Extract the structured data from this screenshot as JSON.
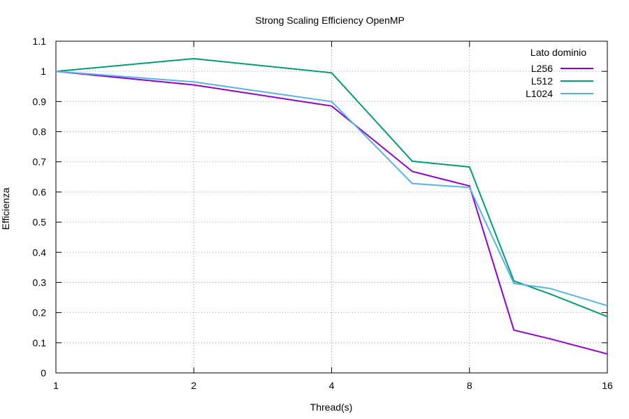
{
  "chart_data": {
    "type": "line",
    "title": "Strong Scaling Efficiency OpenMP",
    "xlabel": "Thread(s)",
    "ylabel": "Efficienza",
    "x_scale": "log2",
    "xlim": [
      1,
      16
    ],
    "ylim": [
      0,
      1.1
    ],
    "x_ticks": [
      1,
      2,
      4,
      8,
      16
    ],
    "x_tick_labels": [
      "1",
      "2",
      "4",
      "8",
      "16"
    ],
    "y_ticks": [
      0,
      0.1,
      0.2,
      0.3,
      0.4,
      0.5,
      0.6,
      0.7,
      0.8,
      0.9,
      1,
      1.1
    ],
    "y_tick_labels": [
      "0",
      "0.1",
      "0.2",
      "0.3",
      "0.4",
      "0.5",
      "0.6",
      "0.7",
      "0.8",
      "0.9",
      "1",
      "1.1"
    ],
    "grid": true,
    "legend": {
      "title": "Lato dominio",
      "position": "top-right"
    },
    "x": [
      1,
      2,
      4,
      6,
      8,
      10,
      12,
      16
    ],
    "series": [
      {
        "name": "L256",
        "color": "#9400d3",
        "values": [
          1.0,
          0.955,
          0.885,
          0.668,
          0.62,
          0.142,
          0.113,
          0.063
        ]
      },
      {
        "name": "L512",
        "color": "#009e73",
        "values": [
          1.0,
          1.042,
          0.995,
          0.702,
          0.683,
          0.305,
          0.262,
          0.187
        ]
      },
      {
        "name": "L1024",
        "color": "#56b4e9",
        "values": [
          1.0,
          0.965,
          0.9,
          0.628,
          0.615,
          0.297,
          0.28,
          0.223
        ]
      }
    ]
  }
}
